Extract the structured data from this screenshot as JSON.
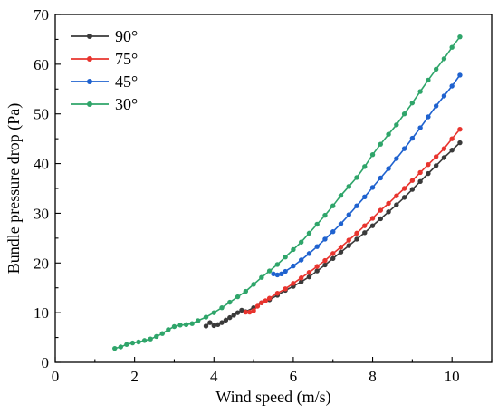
{
  "chart_data": {
    "type": "line",
    "xlabel": "Wind speed (m/s)",
    "ylabel": "Bundle pressure drop (Pa)",
    "xlim": [
      0,
      11
    ],
    "ylim": [
      0,
      70
    ],
    "xticks": [
      0,
      2,
      4,
      6,
      8,
      10
    ],
    "yticks": [
      0,
      10,
      20,
      30,
      40,
      50,
      60,
      70
    ],
    "grid": false,
    "legend_position": "top-left",
    "series": [
      {
        "name": "90°",
        "color": "#3a3a3a",
        "x": [
          3.8,
          3.9,
          4.0,
          4.1,
          4.2,
          4.3,
          4.4,
          4.5,
          4.6,
          4.7,
          4.8,
          5.0,
          5.2,
          5.4,
          5.6,
          5.8,
          6.0,
          6.2,
          6.4,
          6.6,
          6.8,
          7.0,
          7.2,
          7.4,
          7.6,
          7.8,
          8.0,
          8.2,
          8.4,
          8.6,
          8.8,
          9.0,
          9.2,
          9.4,
          9.6,
          9.8,
          10.0,
          10.2
        ],
        "y": [
          7.3,
          8.0,
          7.4,
          7.6,
          8.0,
          8.5,
          9.0,
          9.5,
          10.0,
          10.5,
          10.2,
          11.0,
          12.0,
          12.6,
          13.5,
          14.5,
          15.3,
          16.2,
          17.2,
          18.4,
          19.6,
          20.9,
          22.2,
          23.5,
          24.8,
          26.1,
          27.5,
          28.9,
          30.3,
          31.7,
          33.2,
          34.8,
          36.4,
          38.0,
          39.6,
          41.2,
          42.7,
          44.2
        ]
      },
      {
        "name": "75°",
        "color": "#e8342e",
        "x": [
          4.8,
          4.9,
          5.0,
          5.1,
          5.2,
          5.3,
          5.4,
          5.6,
          5.8,
          6.0,
          6.2,
          6.4,
          6.6,
          6.8,
          7.0,
          7.2,
          7.4,
          7.6,
          7.8,
          8.0,
          8.2,
          8.4,
          8.6,
          8.8,
          9.0,
          9.2,
          9.4,
          9.6,
          9.8,
          10.0,
          10.2
        ],
        "y": [
          10.1,
          10.1,
          10.4,
          11.3,
          12.0,
          12.4,
          12.9,
          13.9,
          14.8,
          15.9,
          17.0,
          18.1,
          19.3,
          20.5,
          21.9,
          23.2,
          24.6,
          26.0,
          27.5,
          29.0,
          30.6,
          32.0,
          33.5,
          35.0,
          36.6,
          38.2,
          39.8,
          41.4,
          43.0,
          45.0,
          46.9
        ]
      },
      {
        "name": "45°",
        "color": "#1f62cf",
        "x": [
          5.5,
          5.6,
          5.7,
          5.8,
          6.0,
          6.2,
          6.4,
          6.6,
          6.8,
          7.0,
          7.2,
          7.4,
          7.6,
          7.8,
          8.0,
          8.2,
          8.4,
          8.6,
          8.8,
          9.0,
          9.2,
          9.4,
          9.6,
          9.8,
          10.0,
          10.2
        ],
        "y": [
          17.8,
          17.6,
          17.8,
          18.3,
          19.4,
          20.6,
          21.9,
          23.3,
          24.8,
          26.3,
          27.9,
          29.7,
          31.5,
          33.3,
          35.2,
          37.1,
          39.0,
          41.0,
          43.0,
          45.1,
          47.2,
          49.4,
          51.6,
          53.6,
          55.6,
          57.8
        ]
      },
      {
        "name": "30°",
        "color": "#2fa56a",
        "x": [
          1.5,
          1.65,
          1.8,
          1.95,
          2.1,
          2.25,
          2.4,
          2.55,
          2.7,
          2.85,
          3.0,
          3.15,
          3.3,
          3.45,
          3.6,
          3.8,
          4.0,
          4.2,
          4.4,
          4.6,
          4.8,
          5.0,
          5.2,
          5.4,
          5.6,
          5.8,
          6.0,
          6.2,
          6.4,
          6.6,
          6.8,
          7.0,
          7.2,
          7.4,
          7.6,
          7.8,
          8.0,
          8.2,
          8.4,
          8.6,
          8.8,
          9.0,
          9.2,
          9.4,
          9.6,
          9.8,
          10.0,
          10.2
        ],
        "y": [
          2.8,
          3.1,
          3.6,
          3.9,
          4.1,
          4.4,
          4.7,
          5.2,
          5.8,
          6.6,
          7.2,
          7.5,
          7.6,
          7.8,
          8.4,
          9.1,
          10.0,
          11.0,
          12.1,
          13.2,
          14.3,
          15.7,
          17.1,
          18.4,
          19.7,
          21.2,
          22.7,
          24.2,
          26.0,
          27.8,
          29.6,
          31.5,
          33.6,
          35.4,
          37.2,
          39.4,
          41.8,
          43.9,
          45.9,
          47.8,
          50.0,
          52.2,
          54.5,
          56.8,
          59.0,
          61.1,
          63.4,
          65.5
        ]
      }
    ]
  }
}
